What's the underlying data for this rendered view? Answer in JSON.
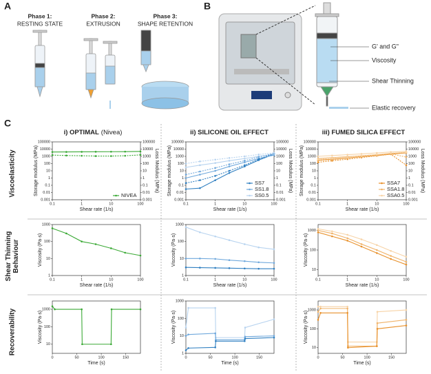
{
  "panels": {
    "a": {
      "label": "A",
      "phases": [
        {
          "title": "Phase 1:",
          "subtitle": "RESTING STATE"
        },
        {
          "title": "Phase 2:",
          "subtitle": "EXTRUSION"
        },
        {
          "title": "Phase 3:",
          "subtitle": "SHAPE RETENTION"
        }
      ]
    },
    "b": {
      "label": "B",
      "labels": [
        "G' and G\"",
        "Viscosity",
        "Shear Thinning",
        "Elastic recovery"
      ]
    },
    "c": {
      "label": "C",
      "column_headers": [
        {
          "bold": "i) OPTIMAL",
          "normal": "(Nivea)"
        },
        {
          "bold": "ii) SILICONE OIL EFFECT"
        },
        {
          "bold": "iii) FUMED SILICA EFFECT"
        }
      ],
      "row_labels": [
        [
          "Viscoelasticity"
        ],
        [
          "Shear Thinning",
          "Behaviour"
        ],
        [
          "Recoverability"
        ]
      ]
    }
  },
  "chart_data": [
    {
      "type": "line",
      "xscale": "log",
      "yscale": "log",
      "xlabel": "Shear rate  (1/s)",
      "ylabel": "Storage modulus (MPa)",
      "y2label": "Loss Modulus (MPa)",
      "xlim": [
        0.1,
        100
      ],
      "xticks": [
        0.1,
        1,
        10,
        100
      ],
      "ylim": [
        0.001,
        100000
      ],
      "yticks": [
        0.001,
        0.01,
        0.1,
        1,
        10,
        100,
        1000,
        10000,
        100000
      ],
      "y2lim": [
        0.001,
        100000
      ],
      "y2ticks": [
        0.001,
        0.01,
        0.1,
        1,
        10,
        100,
        1000,
        10000,
        100000
      ],
      "legend": "lower right",
      "x": [
        0.1,
        0.3,
        1,
        3,
        10,
        30,
        100
      ],
      "series": [
        {
          "name": "NIVEA",
          "color": "#3aa935",
          "values": [
            4000,
            4100,
            4200,
            4300,
            4400,
            4500,
            4800
          ]
        },
        {
          "color": "#3aa935",
          "dashed": true,
          "values": [
            1500,
            1300,
            1200,
            1100,
            1100,
            1200,
            1600
          ]
        }
      ]
    },
    {
      "type": "line",
      "xscale": "log",
      "yscale": "log",
      "xlabel": "Shear rate  (1/s)",
      "ylabel": "Storage modulus (MPa)",
      "y2label": "Loss Modulus (MPa)",
      "xlim": [
        0.1,
        100
      ],
      "xticks": [
        0.1,
        1,
        10,
        100
      ],
      "ylim": [
        0.001,
        100000
      ],
      "yticks": [
        0.001,
        0.01,
        0.1,
        1,
        10,
        100,
        1000,
        10000,
        100000
      ],
      "y2lim": [
        0.001,
        100000
      ],
      "y2ticks": [
        0.001,
        0.01,
        0.1,
        1,
        10,
        100,
        1000,
        10000,
        100000
      ],
      "legend": "lower right",
      "x": [
        0.1,
        0.3,
        1,
        3,
        10,
        30,
        100
      ],
      "series": [
        {
          "name": "SS7",
          "color": "#2f7fc1",
          "values": [
            0.03,
            0.04,
            0.5,
            5,
            40,
            300,
            2000
          ]
        },
        {
          "name": "SS1.8",
          "color": "#6fa8dc",
          "values": [
            1,
            3,
            10,
            40,
            150,
            500,
            1500
          ]
        },
        {
          "name": "SS0.5",
          "color": "#b7d3ef",
          "values": [
            30,
            60,
            120,
            250,
            500,
            1000,
            2000
          ]
        },
        {
          "color": "#2f7fc1",
          "dashed": true,
          "values": [
            0.2,
            0.5,
            2,
            10,
            60,
            400,
            2500
          ]
        },
        {
          "color": "#6fa8dc",
          "dashed": true,
          "values": [
            3,
            8,
            25,
            80,
            250,
            800,
            2500
          ]
        },
        {
          "color": "#b7d3ef",
          "dashed": true,
          "values": [
            100,
            200,
            350,
            600,
            1000,
            1800,
            3000
          ]
        }
      ]
    },
    {
      "type": "line",
      "xscale": "log",
      "yscale": "log",
      "xlabel": "Shear rate  (1/s)",
      "ylabel": "Storage modulus (MPa)",
      "y2label": "Loss Modulus (MPa)",
      "xlim": [
        0.1,
        100
      ],
      "xticks": [
        0.1,
        1,
        10,
        100
      ],
      "ylim": [
        0.001,
        100000
      ],
      "yticks": [
        0.001,
        0.01,
        0.1,
        1,
        10,
        100,
        1000,
        10000,
        100000
      ],
      "y2lim": [
        0.001,
        100000
      ],
      "y2ticks": [
        0.001,
        0.01,
        0.1,
        1,
        10,
        100,
        1000,
        10000,
        100000
      ],
      "legend": "lower right",
      "x": [
        0.1,
        0.3,
        1,
        3,
        10,
        30,
        100
      ],
      "series": [
        {
          "name": "SSA7",
          "color": "#e8902a",
          "values": [
            300,
            400,
            600,
            900,
            1300,
            2000,
            3000
          ]
        },
        {
          "name": "SSA1.8",
          "color": "#f0b36a",
          "values": [
            500,
            650,
            900,
            1200,
            1700,
            2500,
            3500
          ]
        },
        {
          "name": "SSA0.5",
          "color": "#f7d3a6",
          "values": [
            1000,
            1300,
            1700,
            2200,
            3000,
            4000,
            5000
          ]
        },
        {
          "color": "#e8902a",
          "dashed": true,
          "values": [
            150,
            250,
            400,
            700,
            1200,
            2000,
            60
          ]
        },
        {
          "color": "#f0b36a",
          "dashed": true,
          "values": [
            250,
            350,
            550,
            900,
            1400,
            2200,
            800
          ]
        },
        {
          "color": "#f7d3a6",
          "dashed": true,
          "values": [
            400,
            550,
            800,
            1200,
            1800,
            2800,
            3500
          ]
        }
      ]
    },
    {
      "type": "line",
      "xscale": "log",
      "yscale": "log",
      "xlabel": "Shear rate  (1/s)",
      "ylabel": "Viscosity (Pa·s)",
      "xlim": [
        0.1,
        100
      ],
      "xticks": [
        0.1,
        1,
        10,
        100
      ],
      "ylim": [
        1,
        1000
      ],
      "yticks": [
        1,
        10,
        100,
        1000
      ],
      "x": [
        0.1,
        0.3,
        1,
        3,
        10,
        30,
        100
      ],
      "series": [
        {
          "color": "#3aa935",
          "values": [
            600,
            300,
            100,
            70,
            40,
            22,
            15
          ]
        }
      ]
    },
    {
      "type": "line",
      "xscale": "log",
      "yscale": "log",
      "xlabel": "Shear rate  (1/s)",
      "ylabel": "Viscosity (Pa·s)",
      "xlim": [
        0.1,
        100
      ],
      "xticks": [
        0.1,
        1,
        10,
        100
      ],
      "ylim": [
        1,
        1000
      ],
      "yticks": [
        1,
        10,
        100,
        1000
      ],
      "x": [
        0.1,
        0.3,
        1,
        3,
        10,
        30,
        100
      ],
      "series": [
        {
          "color": "#b7d3ef",
          "values": [
            700,
            350,
            200,
            120,
            70,
            45,
            35
          ]
        },
        {
          "color": "#6fa8dc",
          "values": [
            10,
            10,
            9.5,
            8,
            7,
            6,
            5.5
          ]
        },
        {
          "color": "#2f7fc1",
          "values": [
            3,
            2.9,
            2.8,
            2.7,
            2.6,
            2.5,
            2.5
          ]
        }
      ]
    },
    {
      "type": "line",
      "xscale": "log",
      "yscale": "log",
      "xlabel": "Shear rate  (1/s)",
      "ylabel": "Viscosity (Pa·s)",
      "xlim": [
        0.1,
        100
      ],
      "xticks": [
        0.1,
        1,
        10,
        100
      ],
      "ylim": [
        5,
        2000
      ],
      "yticks": [
        10,
        100,
        1000
      ],
      "x": [
        0.1,
        0.3,
        1,
        3,
        10,
        30,
        100
      ],
      "series": [
        {
          "color": "#f7d3a6",
          "values": [
            1200,
            900,
            600,
            350,
            180,
            90,
            45
          ]
        },
        {
          "color": "#f0b36a",
          "values": [
            1000,
            700,
            400,
            200,
            100,
            50,
            25
          ]
        },
        {
          "color": "#e8902a",
          "values": [
            800,
            500,
            300,
            150,
            70,
            35,
            18
          ]
        }
      ]
    },
    {
      "type": "line",
      "yscale": "log",
      "xlabel": "Time (s)",
      "ylabel": "Viscosity (Pa·s)",
      "xlim": [
        0,
        180
      ],
      "xticks": [
        0,
        50,
        100,
        150
      ],
      "ylim": [
        3,
        3000
      ],
      "yticks": [
        10,
        100,
        1000
      ],
      "x": [
        0,
        5,
        60,
        61,
        120,
        121,
        180
      ],
      "series": [
        {
          "color": "#3aa935",
          "values": [
            1500,
            1000,
            1000,
            10,
            10,
            1000,
            1000
          ]
        }
      ]
    },
    {
      "type": "line",
      "yscale": "log",
      "xlabel": "Time (s)",
      "ylabel": "Viscosity (Pa·s)",
      "xlim": [
        0,
        180
      ],
      "xticks": [
        0,
        50,
        100,
        150
      ],
      "ylim": [
        1,
        1000
      ],
      "yticks": [
        1,
        10,
        100,
        1000
      ],
      "x": [
        0,
        5,
        60,
        61,
        120,
        121,
        180
      ],
      "series": [
        {
          "color": "#b7d3ef",
          "values": [
            30,
            400,
            400,
            8,
            8,
            30,
            90
          ]
        },
        {
          "color": "#6fa8dc",
          "values": [
            10,
            12,
            14,
            6,
            6,
            9,
            10
          ]
        },
        {
          "color": "#2f7fc1",
          "values": [
            1.5,
            2,
            2.2,
            5,
            5,
            7,
            8
          ]
        }
      ]
    },
    {
      "type": "line",
      "yscale": "log",
      "xlabel": "Time (s)",
      "ylabel": "Viscosity (Pa·s)",
      "xlim": [
        0,
        180
      ],
      "xticks": [
        0,
        50,
        100,
        150
      ],
      "ylim": [
        5,
        3000
      ],
      "yticks": [
        10,
        100,
        1000
      ],
      "x": [
        0,
        5,
        60,
        61,
        120,
        121,
        180
      ],
      "series": [
        {
          "color": "#f7d3a6",
          "values": [
            1500,
            1500,
            1500,
            20,
            20,
            800,
            1000
          ]
        },
        {
          "color": "#f0b36a",
          "values": [
            800,
            1200,
            1200,
            12,
            12,
            200,
            300
          ]
        },
        {
          "color": "#e8902a",
          "values": [
            300,
            700,
            700,
            10,
            12,
            100,
            150
          ]
        }
      ]
    }
  ]
}
